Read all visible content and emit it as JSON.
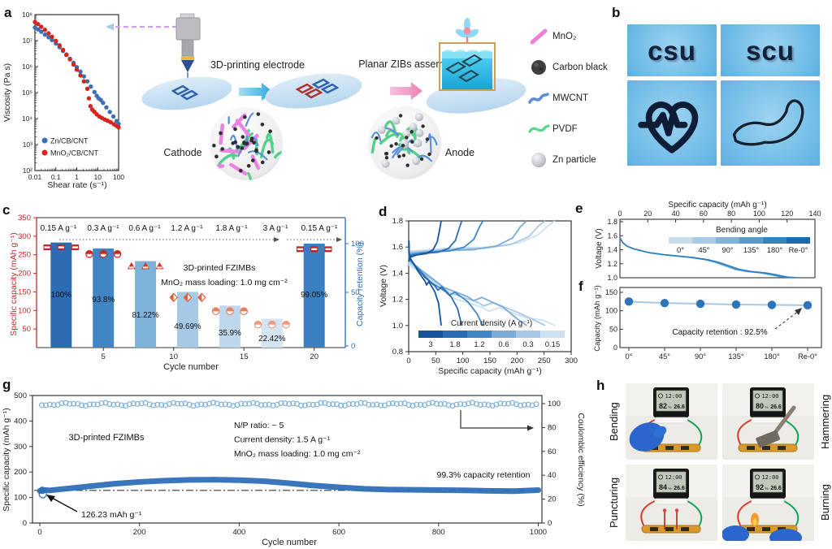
{
  "panel_a": {
    "label": "a",
    "chart_data": {
      "type": "scatter",
      "xlabel": "Shear rate (s⁻¹)",
      "ylabel": "Viscosity (Pa s)",
      "x_ticks": [
        "0.01",
        "0.1",
        "1",
        "10",
        "100"
      ],
      "y_ticks": [
        "10²",
        "10³",
        "10⁴",
        "10⁵",
        "10⁶",
        "10⁷",
        "10⁸"
      ],
      "xlim_log": [
        -2,
        2
      ],
      "ylim_log": [
        2,
        8
      ],
      "series": [
        {
          "name": "Zn/CB/CNT",
          "color": "#3d6fb5",
          "points": [
            [
              0.01,
              32000000.0
            ],
            [
              0.014,
              27000000.0
            ],
            [
              0.02,
              22000000.0
            ],
            [
              0.03,
              17000000.0
            ],
            [
              0.045,
              13500000.0
            ],
            [
              0.065,
              10500000.0
            ],
            [
              0.1,
              7800000.0
            ],
            [
              0.15,
              5600000.0
            ],
            [
              0.22,
              4000000.0
            ],
            [
              0.32,
              2800000.0
            ],
            [
              0.47,
              2000000.0
            ],
            [
              0.7,
              1400000.0
            ],
            [
              1,
              950000.0
            ],
            [
              1.5,
              640000.0
            ],
            [
              2.2,
              420000.0
            ],
            [
              3.2,
              270000.0
            ],
            [
              4.7,
              170000.0
            ],
            [
              7,
              105000.0
            ],
            [
              9,
              75000.0
            ],
            [
              11,
              60000.0
            ],
            [
              14,
              52000.0
            ],
            [
              18,
              40000.0
            ],
            [
              26,
              27000.0
            ],
            [
              38,
              18000.0
            ],
            [
              56,
              12000.0
            ],
            [
              80,
              8000.0
            ],
            [
              100,
              6200.0
            ]
          ]
        },
        {
          "name": "MnO₂/CB/CNT",
          "color": "#d7251d",
          "points": [
            [
              0.01,
              52000000.0
            ],
            [
              0.014,
              43000000.0
            ],
            [
              0.02,
              34000000.0
            ],
            [
              0.03,
              26000000.0
            ],
            [
              0.045,
              19000000.0
            ],
            [
              0.065,
              14000000.0
            ],
            [
              0.1,
              9800000.0
            ],
            [
              0.15,
              6600000.0
            ],
            [
              0.22,
              4400000.0
            ],
            [
              0.32,
              2900000.0
            ],
            [
              0.47,
              1900000.0
            ],
            [
              0.7,
              1200000.0
            ],
            [
              1,
              760000.0
            ],
            [
              1.5,
              460000.0
            ],
            [
              2.2,
              270000.0
            ],
            [
              3.2,
              140000.0
            ],
            [
              3.8,
              60000.0
            ],
            [
              4.5,
              30000.0
            ],
            [
              5.5,
              22000.0
            ],
            [
              7,
              18000.0
            ],
            [
              9,
              14500.0
            ],
            [
              12,
              12000.0
            ],
            [
              16,
              10500.0
            ],
            [
              22,
              9200.0
            ],
            [
              30,
              8200.0
            ],
            [
              42,
              7200.0
            ],
            [
              60,
              6000.0
            ],
            [
              80,
              5200.0
            ],
            [
              100,
              4600.0
            ]
          ]
        }
      ]
    }
  },
  "schematic": {
    "step1_label": "3D-printing electrode",
    "step2_label": "Planar ZIBs assembly",
    "cathode_label": "Cathode",
    "anode_label": "Anode",
    "materials": [
      {
        "name": "MnO₂",
        "icon": "mno2-rod",
        "color": "#ee7fdc"
      },
      {
        "name": "Carbon black",
        "icon": "carbon-black-sphere",
        "color": "#3f3f3f"
      },
      {
        "name": "MWCNT",
        "icon": "mwcnt-curve",
        "color": "#5b8fd8"
      },
      {
        "name": "PVDF",
        "icon": "pvdf-curve",
        "color": "#57d68f"
      },
      {
        "name": "Zn particle",
        "icon": "zn-sphere",
        "color": "#aab0b8"
      }
    ]
  },
  "panel_b": {
    "label": "b",
    "cells": [
      {
        "type": "text",
        "text": "csu"
      },
      {
        "type": "text",
        "text": "scu"
      },
      {
        "type": "icon",
        "name": "heartbeat-icon"
      },
      {
        "type": "icon",
        "name": "arm-icon"
      }
    ]
  },
  "panel_c": {
    "label": "c",
    "rates": [
      "0.15 A g⁻¹",
      "0.3 A g⁻¹",
      "0.6 A g⁻¹",
      "1.2 A g⁻¹",
      "1.8 A g⁻¹",
      "3 A g⁻¹",
      "0.15 A g⁻¹"
    ],
    "annotation1": "3D-printed FZIMBs",
    "annotation2": "MnO₂ mass loading: 1.0 mg cm⁻²",
    "chart_data": {
      "type": "bar",
      "xlabel": "Cycle number",
      "x_ticks": [
        5,
        10,
        15,
        20
      ],
      "ylabel_left": "Specific capacity (mAh g⁻¹)",
      "y_ticks_left": [
        50,
        100,
        150,
        200,
        250,
        300,
        350
      ],
      "ylim": [
        0,
        350
      ],
      "ylabel_right": "Capacity retention (%)",
      "y_ticks_right": [
        0,
        50,
        100
      ],
      "categories_cycle": [
        2,
        5,
        8,
        11,
        14,
        17,
        20
      ],
      "values": [
        283,
        267,
        233,
        150,
        113,
        78,
        280
      ],
      "retention_labels": [
        "100%",
        "93.8%",
        "81.22%",
        "49.69%",
        "35.9%",
        "22.42%",
        "99.05%"
      ],
      "label_y_values": [
        142,
        129,
        87,
        57,
        39,
        24,
        142
      ],
      "marker_values": [
        270,
        252,
        220,
        135,
        98,
        62,
        265
      ],
      "marker_shapes": [
        "square",
        "circle",
        "triangle",
        "diamond",
        "circle",
        "circle",
        "square"
      ],
      "marker_colors": [
        "#c32222",
        "#c7281f",
        "#d03a22",
        "#e0603c",
        "#ea8060",
        "#f0997b",
        "#c32222"
      ],
      "bar_colors": [
        "#2b6cb3",
        "#4285c4",
        "#7fb2d9",
        "#a6c9e5",
        "#bdd7ec",
        "#d4e4f3",
        "#3c7fc0"
      ],
      "axis_color_left": "#cc2626",
      "axis_color_right": "#2b6cb5"
    }
  },
  "panel_d": {
    "label": "d",
    "chart_data": {
      "type": "line",
      "xlabel": "Specific capacity (mAh g⁻¹)",
      "x_ticks": [
        0,
        50,
        100,
        150,
        200,
        250,
        300
      ],
      "xlim": [
        0,
        300
      ],
      "ylabel": "Voltage (V)",
      "y_ticks": [
        "0.8",
        "1.0",
        "1.2",
        "1.4",
        "1.6",
        "1.8"
      ],
      "ylim": [
        0.8,
        1.8
      ],
      "legend_title": "Current density (A g⁻¹)",
      "series": [
        {
          "rate": "3",
          "capacity": 60,
          "color": "#15549e"
        },
        {
          "rate": "1.8",
          "capacity": 98,
          "color": "#2a6cb3"
        },
        {
          "rate": "1.2",
          "capacity": 137,
          "color": "#4186c5"
        },
        {
          "rate": "0.6",
          "capacity": 218,
          "color": "#7aacd6"
        },
        {
          "rate": "0.3",
          "capacity": 252,
          "color": "#a6c8e6"
        },
        {
          "rate": "0.15",
          "capacity": 270,
          "color": "#cfe1f1"
        }
      ]
    }
  },
  "panel_e": {
    "label": "e",
    "chart_data": {
      "type": "line",
      "xlabel_top": "Specific capacity (mAh g⁻¹)",
      "x_ticks": [
        0,
        20,
        40,
        60,
        80,
        100,
        120,
        140
      ],
      "xlim": [
        0,
        140
      ],
      "ylabel": "Voltage (V)",
      "y_ticks": [
        "1.0",
        "1.2",
        "1.4",
        "1.6",
        "1.8"
      ],
      "ylim": [
        1.0,
        1.8
      ],
      "legend_title": "Bending angle",
      "legend_labels": [
        "0°",
        "45°",
        "90°",
        "135°",
        "180°",
        "Re-0°"
      ],
      "legend_colors": [
        "#c9ddee",
        "#a9cbe4",
        "#82b3d7",
        "#5b9ac9",
        "#3584bd",
        "#1a6cae"
      ],
      "curve_color": "#2a7fc0",
      "curve": [
        [
          0,
          1.57
        ],
        [
          2,
          1.5
        ],
        [
          5,
          1.45
        ],
        [
          10,
          1.41
        ],
        [
          20,
          1.36
        ],
        [
          30,
          1.33
        ],
        [
          40,
          1.31
        ],
        [
          50,
          1.29
        ],
        [
          60,
          1.26
        ],
        [
          68,
          1.22
        ],
        [
          75,
          1.17
        ],
        [
          82,
          1.12
        ],
        [
          90,
          1.09
        ],
        [
          100,
          1.07
        ],
        [
          108,
          1.04
        ],
        [
          115,
          1.01
        ],
        [
          122,
          1.0
        ]
      ]
    }
  },
  "panel_f": {
    "label": "f",
    "chart_data": {
      "type": "scatter-line",
      "categories": [
        "0°",
        "45°",
        "90°",
        "135°",
        "180°",
        "Re-0°"
      ],
      "values": [
        125,
        121,
        119,
        117,
        116,
        115
      ],
      "ylabel": "Capacity (mAh g⁻¹)",
      "y_ticks": [
        0,
        50,
        100,
        150
      ],
      "ylim": [
        0,
        150
      ],
      "annotation": "Capacity retention : 92.5%",
      "point_color": "#2e74ba",
      "line_color": "#a5c8e6"
    }
  },
  "panel_g": {
    "label": "g",
    "annotation_name": "3D-printed FZIMBs",
    "annotation_lines": [
      "N/P ratio: ~ 5",
      "Current density: 1.5 A g⁻¹",
      "MnO₂ mass loading: 1.0 mg cm⁻²"
    ],
    "annotation_retention": "99.3% capacity retention",
    "annotation_initial": "126.23 mAh g⁻¹",
    "chart_data": {
      "type": "line+scatter",
      "xlabel": "Cycle number",
      "x_ticks": [
        0,
        200,
        400,
        600,
        800,
        1000
      ],
      "xlim": [
        0,
        1000
      ],
      "ylabel_left": "Specific capacity (mAh g⁻¹)",
      "y_ticks_left": [
        0,
        100,
        200,
        300,
        400,
        500
      ],
      "ylim_left": [
        0,
        500
      ],
      "ylabel_right": "Coulombic efficiency (%)",
      "y_ticks_right": [
        0,
        20,
        40,
        60,
        80,
        100
      ],
      "ylim_right": [
        0,
        100
      ],
      "coulombic_efficiency": 99.5,
      "baseline_capacity": 128,
      "capacity_color": "#2e6fb7",
      "ce_color": "#7fb3dc",
      "capacity_curve": [
        [
          0,
          126
        ],
        [
          5,
          130
        ],
        [
          20,
          128
        ],
        [
          60,
          136
        ],
        [
          100,
          144
        ],
        [
          150,
          154
        ],
        [
          200,
          161
        ],
        [
          250,
          166
        ],
        [
          300,
          169
        ],
        [
          350,
          170
        ],
        [
          400,
          168
        ],
        [
          450,
          164
        ],
        [
          500,
          156
        ],
        [
          550,
          147
        ],
        [
          600,
          140
        ],
        [
          650,
          134
        ],
        [
          700,
          131
        ],
        [
          750,
          130
        ],
        [
          800,
          129
        ],
        [
          850,
          128
        ],
        [
          900,
          126
        ],
        [
          950,
          125
        ],
        [
          1000,
          129
        ]
      ]
    }
  },
  "panel_h": {
    "label": "h",
    "photos": [
      {
        "label": "Bending",
        "side": "left",
        "type": "bending",
        "time": "12:00",
        "humidity": "82",
        "temp": "26.6"
      },
      {
        "label": "Hammering",
        "side": "right",
        "type": "hammering",
        "time": "12:00",
        "humidity": "80",
        "temp": "26.6"
      },
      {
        "label": "Puncturing",
        "side": "left",
        "type": "puncturing",
        "time": "12:00",
        "humidity": "84",
        "temp": "26.6"
      },
      {
        "label": "Burning",
        "side": "right",
        "type": "burning",
        "time": "12:00",
        "humidity": "92",
        "temp": "26.6"
      }
    ]
  }
}
